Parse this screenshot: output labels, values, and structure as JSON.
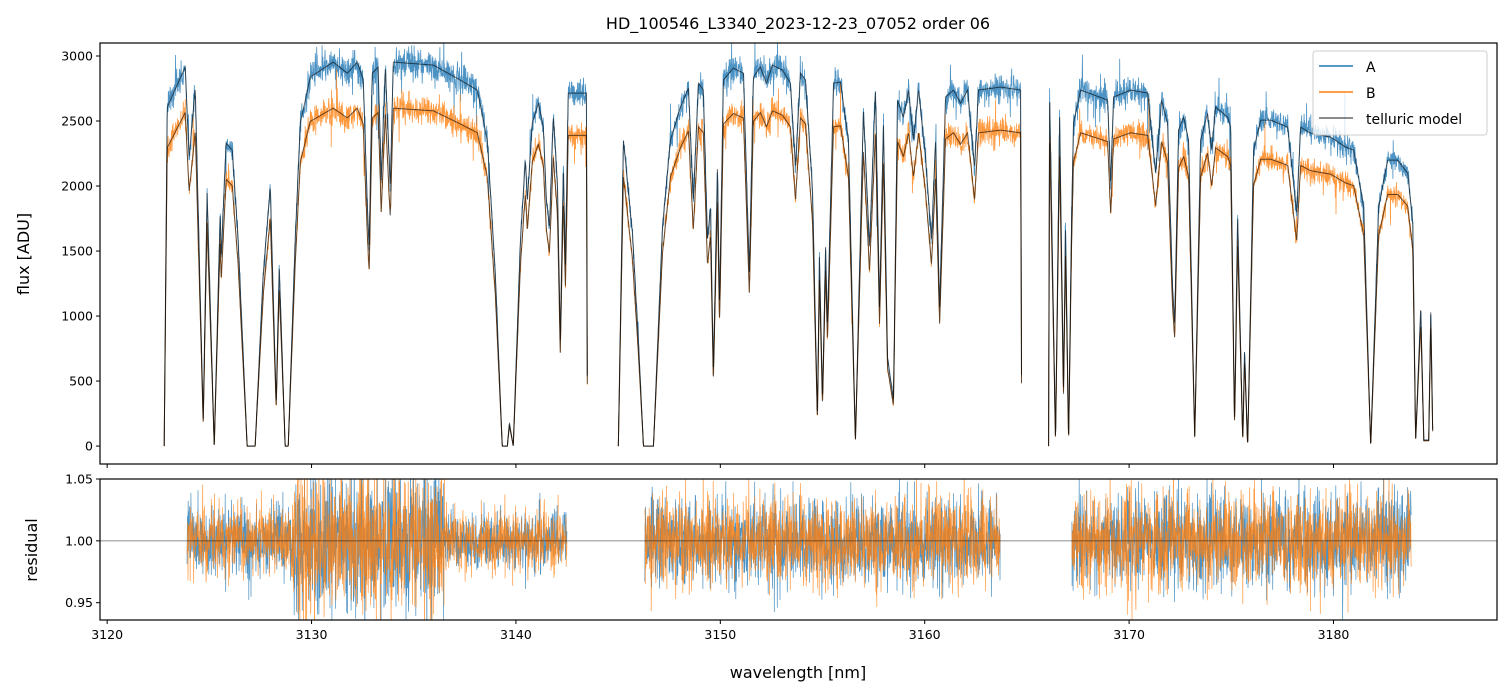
{
  "chart_data": {
    "type": "line",
    "title": "HD_100546_L3340_2023-12-23_07052  order 06",
    "xlabel": "wavelength [nm]",
    "panels": {
      "flux": {
        "ylabel": "flux [ADU]",
        "xlim": [
          3119.65,
          3188.0
        ],
        "ylim": [
          -138,
          3100
        ],
        "xticks": [
          3120,
          3130,
          3140,
          3150,
          3160,
          3170,
          3180
        ],
        "yticks": [
          0,
          500,
          1000,
          1500,
          2000,
          2500,
          3000
        ],
        "legend": {
          "placement": "top-right",
          "entries": [
            "A",
            "B",
            "telluric model"
          ]
        }
      },
      "residual": {
        "ylabel": "residual",
        "ylim": [
          0.936,
          1.05
        ],
        "yticks": [
          "0.95",
          "1.00",
          "1.05"
        ],
        "xticks": [
          "3120",
          "3130",
          "3140",
          "3150",
          "3160",
          "3170",
          "3180"
        ],
        "reference_line": 1.0
      }
    },
    "series": [
      {
        "name": "A",
        "color": "#1f77b4",
        "flux_scale": 1.0
      },
      {
        "name": "B",
        "color": "#ff7f0e",
        "flux_scale": 0.88
      },
      {
        "name": "telluric model",
        "color": "#000000"
      }
    ],
    "model_A_segments": [
      [
        [
          3122.79,
          0
        ],
        [
          3122.94,
          2607
        ],
        [
          3123.82,
          2915
        ],
        [
          3124.01,
          2222
        ],
        [
          3124.31,
          2753
        ],
        [
          3124.7,
          200
        ],
        [
          3124.89,
          1946
        ],
        [
          3125.24,
          0
        ],
        [
          3125.53,
          1792
        ],
        [
          3125.58,
          1453
        ],
        [
          3125.82,
          2330
        ],
        [
          3126.12,
          2276
        ],
        [
          3126.41,
          1584
        ],
        [
          3126.85,
          0
        ],
        [
          3127.24,
          0
        ],
        [
          3127.64,
          1330
        ],
        [
          3127.98,
          1992
        ],
        [
          3128.27,
          331
        ],
        [
          3128.42,
          1377
        ],
        [
          3128.71,
          0
        ],
        [
          3128.86,
          0
        ],
        [
          3129.2,
          1584
        ],
        [
          3129.45,
          2484
        ],
        [
          3129.94,
          2838
        ],
        [
          3131.06,
          2953
        ],
        [
          3131.75,
          2868
        ],
        [
          3132.24,
          2953
        ],
        [
          3132.53,
          2815
        ],
        [
          3132.73,
          1838
        ],
        [
          3132.82,
          1530
        ],
        [
          3132.97,
          2868
        ],
        [
          3133.26,
          2915
        ],
        [
          3133.41,
          2046
        ],
        [
          3133.61,
          2915
        ],
        [
          3133.85,
          1992
        ],
        [
          3134.0,
          2953
        ],
        [
          3135.96,
          2930
        ],
        [
          3137.28,
          2815
        ],
        [
          3138.11,
          2738
        ],
        [
          3138.6,
          2353
        ],
        [
          3138.99,
          1330
        ],
        [
          3139.33,
          0
        ],
        [
          3139.58,
          0
        ],
        [
          3139.68,
          177
        ],
        [
          3139.87,
          0
        ],
        [
          3140.22,
          1584
        ],
        [
          3140.46,
          2199
        ],
        [
          3140.56,
          1892
        ],
        [
          3140.8,
          2484
        ],
        [
          3141.1,
          2638
        ],
        [
          3141.34,
          2453
        ],
        [
          3141.49,
          1892
        ],
        [
          3141.64,
          1684
        ],
        [
          3141.83,
          2530
        ],
        [
          3142.03,
          2022
        ],
        [
          3142.17,
          815
        ],
        [
          3142.32,
          2146
        ],
        [
          3142.42,
          1377
        ],
        [
          3142.56,
          2715
        ],
        [
          3143.45,
          2715
        ],
        [
          3143.5,
          0
        ]
      ],
      [
        [
          3145.01,
          0
        ],
        [
          3145.26,
          2353
        ],
        [
          3145.7,
          1638
        ],
        [
          3145.99,
          815
        ],
        [
          3146.24,
          0
        ],
        [
          3146.73,
          0
        ],
        [
          3147.17,
          1684
        ],
        [
          3147.56,
          2353
        ],
        [
          3148.05,
          2607
        ],
        [
          3148.44,
          2753
        ],
        [
          3148.68,
          1892
        ],
        [
          3148.93,
          2791
        ],
        [
          3149.17,
          2738
        ],
        [
          3149.37,
          1584
        ],
        [
          3149.52,
          1838
        ],
        [
          3149.66,
          561
        ],
        [
          3149.86,
          2146
        ],
        [
          3149.96,
          1069
        ],
        [
          3150.15,
          2815
        ],
        [
          3150.64,
          2907
        ],
        [
          3151.13,
          2868
        ],
        [
          3151.42,
          1330
        ],
        [
          3151.62,
          2838
        ],
        [
          3151.96,
          2915
        ],
        [
          3152.26,
          2791
        ],
        [
          3152.55,
          2930
        ],
        [
          3153.04,
          2892
        ],
        [
          3153.43,
          2791
        ],
        [
          3153.68,
          2146
        ],
        [
          3153.92,
          2868
        ],
        [
          3154.17,
          2815
        ],
        [
          3154.51,
          1969
        ],
        [
          3154.75,
          223
        ],
        [
          3154.85,
          1453
        ],
        [
          3155.0,
          354
        ],
        [
          3155.15,
          1530
        ],
        [
          3155.24,
          915
        ],
        [
          3155.54,
          2791
        ],
        [
          3155.88,
          2799
        ],
        [
          3156.27,
          2353
        ],
        [
          3156.61,
          31
        ],
        [
          3157.0,
          2584
        ],
        [
          3157.3,
          1530
        ],
        [
          3157.59,
          2738
        ],
        [
          3157.79,
          1069
        ],
        [
          3157.98,
          2484
        ],
        [
          3158.18,
          684
        ],
        [
          3158.47,
          354
        ],
        [
          3158.67,
          2661
        ],
        [
          3158.96,
          2530
        ],
        [
          3159.21,
          2738
        ],
        [
          3159.45,
          2353
        ],
        [
          3159.7,
          2738
        ],
        [
          3160.04,
          2222
        ],
        [
          3160.33,
          1584
        ],
        [
          3160.53,
          2353
        ],
        [
          3160.73,
          1069
        ],
        [
          3161.02,
          2684
        ],
        [
          3161.41,
          2738
        ],
        [
          3161.75,
          2638
        ],
        [
          3162.1,
          2738
        ],
        [
          3162.44,
          2146
        ],
        [
          3162.63,
          2738
        ],
        [
          3163.71,
          2761
        ],
        [
          3164.69,
          2738
        ],
        [
          3164.75,
          0
        ]
      ],
      [
        [
          3166.06,
          0
        ],
        [
          3166.11,
          2738
        ],
        [
          3166.4,
          46
        ],
        [
          3166.6,
          2530
        ],
        [
          3166.79,
          431
        ],
        [
          3166.89,
          1684
        ],
        [
          3167.04,
          46
        ],
        [
          3167.19,
          1792
        ],
        [
          3167.28,
          2484
        ],
        [
          3167.63,
          2738
        ],
        [
          3168.95,
          2661
        ],
        [
          3169.1,
          2022
        ],
        [
          3169.24,
          2684
        ],
        [
          3170.07,
          2738
        ],
        [
          3170.91,
          2715
        ],
        [
          3171.3,
          2099
        ],
        [
          3171.59,
          2661
        ],
        [
          3171.88,
          2484
        ],
        [
          3172.13,
          1200
        ],
        [
          3172.23,
          946
        ],
        [
          3172.42,
          2430
        ],
        [
          3172.67,
          2530
        ],
        [
          3172.91,
          2353
        ],
        [
          3173.21,
          62
        ],
        [
          3173.5,
          2353
        ],
        [
          3173.84,
          2561
        ],
        [
          3174.04,
          2276
        ],
        [
          3174.23,
          2607
        ],
        [
          3174.82,
          2530
        ],
        [
          3174.97,
          2453
        ],
        [
          3175.16,
          177
        ],
        [
          3175.31,
          1761
        ],
        [
          3175.56,
          46
        ],
        [
          3175.65,
          738
        ],
        [
          3175.8,
          0
        ],
        [
          3176.09,
          2276
        ],
        [
          3176.44,
          2507
        ],
        [
          3176.93,
          2507
        ],
        [
          3177.76,
          2453
        ],
        [
          3178.2,
          1792
        ],
        [
          3178.39,
          2453
        ],
        [
          3178.88,
          2407
        ],
        [
          3179.86,
          2376
        ],
        [
          3180.6,
          2299
        ],
        [
          3180.99,
          2276
        ],
        [
          3181.48,
          1838
        ],
        [
          3181.82,
          0
        ],
        [
          3182.21,
          1838
        ],
        [
          3182.65,
          2199
        ],
        [
          3183.14,
          2199
        ],
        [
          3183.63,
          2099
        ],
        [
          3183.88,
          1715
        ],
        [
          3184.02,
          46
        ],
        [
          3184.27,
          1069
        ],
        [
          3184.42,
          46
        ],
        [
          3184.66,
          46
        ],
        [
          3184.76,
          1069
        ],
        [
          3184.86,
          46
        ]
      ]
    ],
    "residual_regions": [
      {
        "range": [
          3123.9,
          3129.0
        ],
        "sigma": 0.015
      },
      {
        "range": [
          3129.0,
          3136.5
        ],
        "sigma": 0.03
      },
      {
        "range": [
          3136.5,
          3142.5
        ],
        "sigma": 0.012
      },
      {
        "range": [
          3146.3,
          3163.7
        ],
        "sigma": 0.018
      },
      {
        "range": [
          3167.2,
          3183.8
        ],
        "sigma": 0.02
      }
    ],
    "flux_noise_fraction": 0.02
  }
}
